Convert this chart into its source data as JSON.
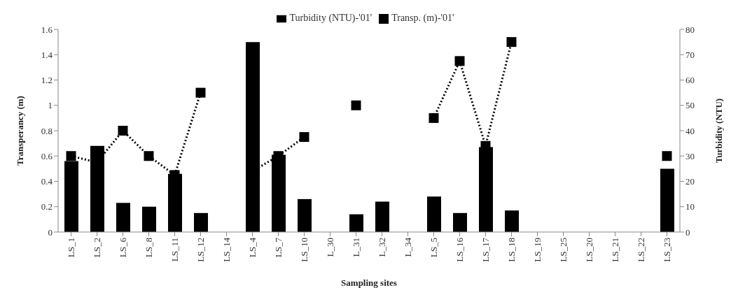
{
  "chart_data": {
    "type": "bar",
    "xlabel": "Sampling sites",
    "ylabel": "Transperancy (m)",
    "y2label": "Turbidity (NTU)",
    "categories": [
      "LS_1",
      "LS_2",
      "LS_6",
      "LS_8",
      "LS_11",
      "LS_12",
      "LS_14",
      "LS_4",
      "LS_7",
      "LS_10",
      "L_30",
      "L_31",
      "L_32",
      "L_34",
      "LS_5",
      "LS_16",
      "LS_17",
      "LS_18",
      "LS_19",
      "LS_25",
      "LS_20",
      "LS_21",
      "LS_22",
      "LS_23"
    ],
    "series": [
      {
        "name": "Turbidity (NTU)-'01'",
        "axis": "y2",
        "color": "#000000",
        "values": [
          28,
          34,
          11.5,
          10,
          23,
          7.5,
          null,
          75,
          30.5,
          13,
          null,
          7,
          12,
          null,
          14,
          7.5,
          33.5,
          8.5,
          null,
          null,
          null,
          null,
          null,
          25
        ]
      },
      {
        "name": "Transp. (m)-'01'",
        "type": "line",
        "color": "#000000",
        "marker": "square",
        "line_style": "dotted",
        "values": [
          0.6,
          0.55,
          0.8,
          0.6,
          0.45,
          1.1,
          null,
          0.48,
          0.6,
          0.75,
          null,
          1.0,
          null,
          null,
          0.9,
          1.35,
          0.68,
          1.5,
          null,
          null,
          null,
          null,
          null,
          0.6
        ]
      }
    ],
    "ylim": [
      0,
      1.6
    ],
    "yticks": [
      0,
      0.2,
      0.4,
      0.6,
      0.8,
      1,
      1.2,
      1.4,
      1.6
    ],
    "y2lim": [
      0,
      80
    ],
    "y2ticks": [
      0,
      10,
      20,
      30,
      40,
      50,
      60,
      70,
      80
    ],
    "legend": "top"
  }
}
